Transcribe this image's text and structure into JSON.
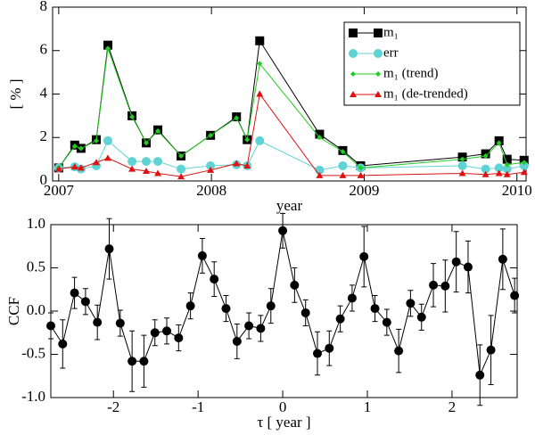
{
  "chart_data": [
    {
      "type": "line",
      "xlabel": "year",
      "ylabel": "[ % ]",
      "xlim": [
        2006.96,
        2010.06
      ],
      "xticks": [
        2007,
        2008,
        2009,
        2010
      ],
      "ylim": [
        0,
        8
      ],
      "yticks": [
        0,
        2,
        4,
        6,
        8
      ],
      "legend": "upper right",
      "x": [
        2007.0,
        2007.105,
        2007.146,
        2007.246,
        2007.322,
        2007.48,
        2007.573,
        2007.649,
        2007.801,
        2007.994,
        2008.164,
        2008.234,
        2008.316,
        2008.708,
        2008.86,
        2008.977,
        2009.643,
        2009.795,
        2009.883,
        2009.936,
        2010.047
      ],
      "series": [
        {
          "name": "m₁",
          "color": "#000000",
          "marker": "square",
          "values": [
            0.6,
            1.65,
            1.5,
            1.9,
            6.25,
            3.0,
            1.75,
            2.35,
            1.15,
            2.1,
            2.95,
            1.9,
            6.45,
            2.15,
            1.4,
            0.7,
            1.1,
            1.25,
            1.85,
            1.0,
            0.95
          ]
        },
        {
          "name": "err",
          "color": "#5fd3d3",
          "marker": "circle",
          "values": [
            0.6,
            0.65,
            0.55,
            0.7,
            1.85,
            0.9,
            0.9,
            0.9,
            0.55,
            0.7,
            0.75,
            0.7,
            1.85,
            0.5,
            0.7,
            0.6,
            0.7,
            0.55,
            0.6,
            0.55,
            0.7
          ]
        },
        {
          "name": "m₁ (trend)",
          "color": "#22cc22",
          "marker": "diamond",
          "values": [
            0.6,
            1.6,
            1.5,
            1.85,
            6.1,
            2.95,
            1.75,
            2.3,
            1.15,
            2.1,
            2.9,
            1.9,
            5.4,
            2.0,
            1.35,
            0.6,
            1.0,
            1.15,
            1.75,
            0.75,
            0.85
          ]
        },
        {
          "name": "m₁ (de-trended)",
          "color": "#dd1111",
          "marker": "triangle",
          "values": [
            0.55,
            0.65,
            0.6,
            0.85,
            1.05,
            0.55,
            0.45,
            0.35,
            0.2,
            0.5,
            0.8,
            0.7,
            4.0,
            0.25,
            0.25,
            0.25,
            0.35,
            0.3,
            0.35,
            0.3,
            0.4
          ]
        }
      ]
    },
    {
      "type": "line",
      "xlabel": "τ [ year ]",
      "ylabel": "CCF",
      "xlim": [
        -2.74,
        2.77
      ],
      "xticks": [
        -2,
        -1,
        0,
        1,
        2
      ],
      "ylim": [
        -1.0,
        1.0
      ],
      "yticks": [
        {
          "value": -1.0,
          "label": "-1.0"
        },
        {
          "value": -0.5,
          "label": "-0.5"
        },
        {
          "value": 0,
          "label": "0.0"
        },
        {
          "value": 0.5,
          "label": "0.5"
        },
        {
          "value": 1.0,
          "label": "1.0"
        }
      ],
      "x": [
        -2.74,
        -2.6,
        -2.46,
        -2.33,
        -2.19,
        -2.05,
        -1.92,
        -1.78,
        -1.64,
        -1.51,
        -1.37,
        -1.23,
        -1.09,
        -0.95,
        -0.81,
        -0.67,
        -0.54,
        -0.4,
        -0.26,
        -0.14,
        0,
        0.14,
        0.27,
        0.41,
        0.55,
        0.68,
        0.82,
        0.96,
        1.09,
        1.23,
        1.37,
        1.51,
        1.64,
        1.78,
        1.92,
        2.05,
        2.19,
        2.33,
        2.46,
        2.6,
        2.74
      ],
      "series": [
        {
          "color": "#000000",
          "marker": "circle",
          "values": [
            -0.17,
            -0.38,
            0.21,
            0.11,
            -0.13,
            0.72,
            -0.14,
            -0.58,
            -0.58,
            -0.25,
            -0.23,
            -0.31,
            0.06,
            0.64,
            0.37,
            0.03,
            -0.35,
            -0.17,
            -0.2,
            0.06,
            0.93,
            0.3,
            -0.02,
            -0.49,
            -0.43,
            -0.09,
            0.15,
            0.63,
            0.03,
            -0.13,
            -0.46,
            0.09,
            -0.07,
            0.3,
            0.29,
            0.57,
            0.51,
            -0.74,
            -0.45,
            0.6,
            0.18
          ],
          "errors": [
            0.15,
            0.28,
            0.18,
            0.15,
            0.2,
            0.35,
            0.15,
            0.35,
            0.3,
            0.15,
            0.15,
            0.15,
            0.15,
            0.2,
            0.2,
            0.15,
            0.2,
            0.15,
            0.15,
            0.2,
            0.2,
            0.2,
            0.15,
            0.25,
            0.2,
            0.15,
            0.15,
            0.35,
            0.15,
            0.15,
            0.25,
            0.15,
            0.15,
            0.25,
            0.3,
            0.35,
            0.3,
            0.35,
            0.4,
            0.35,
            0.2
          ]
        }
      ]
    }
  ]
}
